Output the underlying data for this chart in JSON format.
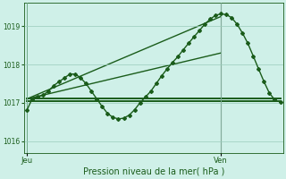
{
  "bg_color": "#cff0e8",
  "grid_color": "#99ccbb",
  "line_color": "#1a5c1a",
  "ven_line_color": "#556655",
  "title": "Pression niveau de la mer( hPa )",
  "xlabel_jeu": "Jeu",
  "xlabel_ven": "Ven",
  "ylim": [
    1015.7,
    1019.6
  ],
  "yticks": [
    1016,
    1017,
    1018,
    1019
  ],
  "series": {
    "main": {
      "x": [
        0,
        1,
        2,
        3,
        4,
        5,
        6,
        7,
        8,
        9,
        10,
        11,
        12,
        13,
        14,
        15,
        16,
        17,
        18,
        19,
        20,
        21,
        22,
        23,
        24,
        25,
        26,
        27,
        28,
        29,
        30,
        31,
        32,
        33,
        34,
        35,
        36,
        37,
        38,
        39,
        40,
        41,
        42,
        43,
        44,
        45,
        46,
        47
      ],
      "y": [
        1016.8,
        1017.1,
        1017.15,
        1017.2,
        1017.3,
        1017.45,
        1017.55,
        1017.65,
        1017.75,
        1017.75,
        1017.65,
        1017.5,
        1017.3,
        1017.1,
        1016.9,
        1016.72,
        1016.62,
        1016.58,
        1016.6,
        1016.68,
        1016.82,
        1017.0,
        1017.15,
        1017.3,
        1017.5,
        1017.7,
        1017.88,
        1018.05,
        1018.2,
        1018.38,
        1018.55,
        1018.72,
        1018.88,
        1019.05,
        1019.18,
        1019.28,
        1019.32,
        1019.3,
        1019.22,
        1019.05,
        1018.82,
        1018.55,
        1018.22,
        1017.88,
        1017.55,
        1017.25,
        1017.08,
        1017.02
      ],
      "has_markers": true
    },
    "flat_high": {
      "x": [
        0,
        47
      ],
      "y": [
        1017.12,
        1017.12
      ],
      "has_markers": false
    },
    "flat_low": {
      "x": [
        0,
        47
      ],
      "y": [
        1017.04,
        1017.04
      ],
      "has_markers": false
    },
    "ramp1": {
      "x": [
        0,
        36
      ],
      "y": [
        1017.1,
        1018.3
      ],
      "has_markers": false
    },
    "ramp2": {
      "x": [
        0,
        36
      ],
      "y": [
        1017.1,
        1019.25
      ],
      "has_markers": false
    }
  },
  "jeu_x": 0,
  "ven_x": 36,
  "xlim": [
    -0.5,
    47.5
  ],
  "marker": "D",
  "marker_size": 2.0,
  "linewidth": 1.0,
  "flat_linewidth": 1.4
}
